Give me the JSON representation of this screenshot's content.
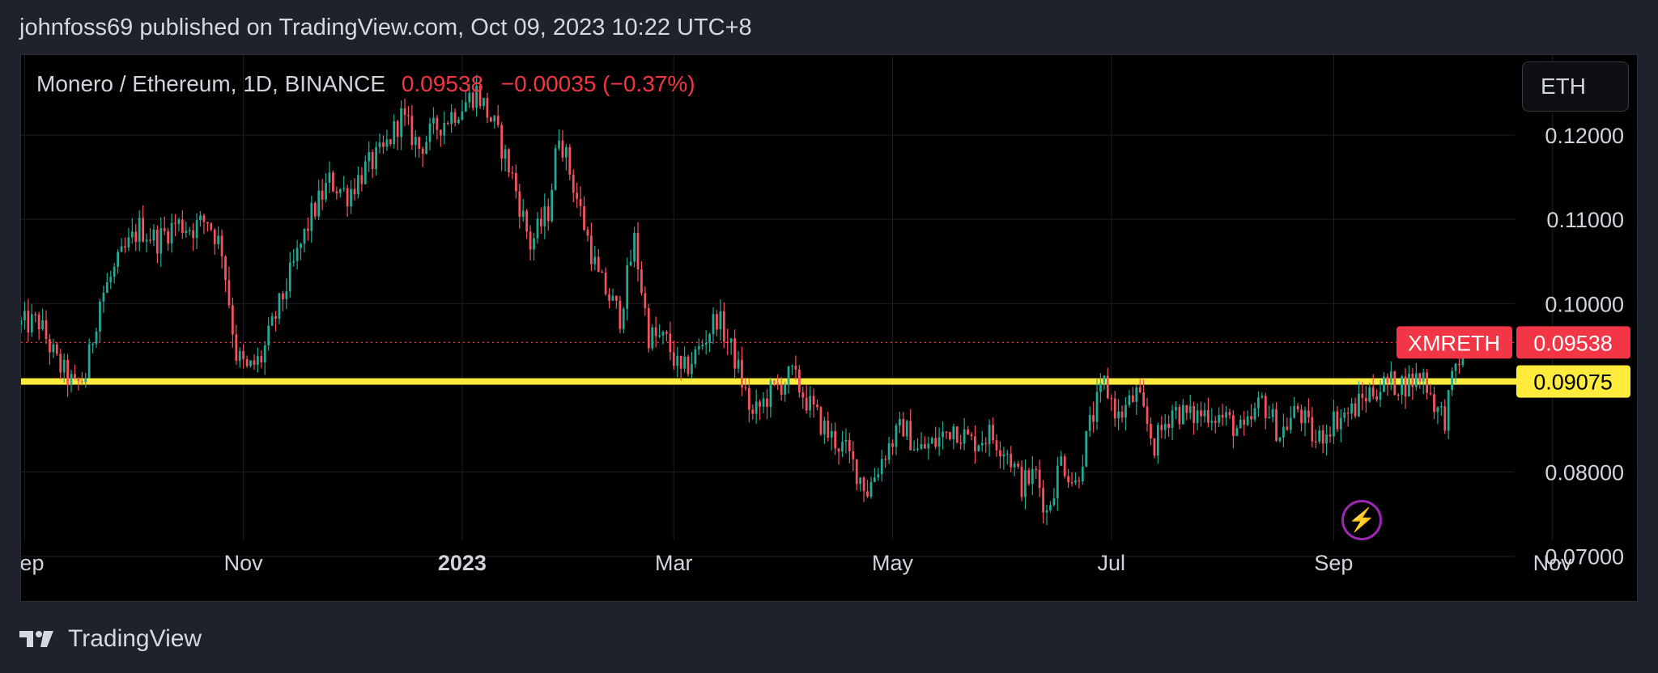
{
  "header": {
    "caption": "johnfoss69 published on TradingView.com, Oct 09, 2023 10:22 UTC+8"
  },
  "legend": {
    "symbol_text": "Monero / Ethereum, 1D, BINANCE",
    "last_price": "0.09538",
    "change": "−0.00035 (−0.37%)"
  },
  "currency_button": "ETH",
  "footer": {
    "brand": "TradingView"
  },
  "colors": {
    "up": "#22ab94",
    "down": "#f7525f",
    "support": "#ffeb3b",
    "symbol_tag_bg": "#f23645",
    "grid": "#1c1f26",
    "text": "#d1d4dc"
  },
  "icons": {
    "quick_action": "lightning-bolt-icon",
    "brand": "tradingview-logo-icon"
  },
  "chart_data": {
    "type": "candlestick",
    "symbol": "XMRETH",
    "interval": "1D",
    "exchange": "BINANCE",
    "last_value": 0.09538,
    "last_value_label": "0.09538",
    "support_level": 0.09075,
    "support_label": "0.09075",
    "y_axis": {
      "range": [
        0.0645,
        0.1295
      ],
      "ticks": [
        0.12,
        0.11,
        0.1,
        0.08,
        0.07
      ],
      "tick_labels": [
        "0.12000",
        "0.11000",
        "0.10000",
        "0.08000",
        "0.07000"
      ]
    },
    "x_axis": {
      "range": [
        "2022-08-31",
        "2023-11-25"
      ],
      "ticks": [
        {
          "date": "2022-09-01",
          "label": "Sep",
          "bold": false
        },
        {
          "date": "2022-11-01",
          "label": "Nov",
          "bold": false
        },
        {
          "date": "2023-01-01",
          "label": "2023",
          "bold": true
        },
        {
          "date": "2023-03-01",
          "label": "Mar",
          "bold": false
        },
        {
          "date": "2023-05-01",
          "label": "May",
          "bold": false
        },
        {
          "date": "2023-07-01",
          "label": "Jul",
          "bold": false
        },
        {
          "date": "2023-09-01",
          "label": "Sep",
          "bold": false
        },
        {
          "date": "2023-11-01",
          "label": "Nov",
          "bold": false
        }
      ]
    },
    "grid": true,
    "close_series": [
      [
        "2022-08-31",
        0.0975
      ],
      [
        "2022-09-05",
        0.0978
      ],
      [
        "2022-09-10",
        0.093
      ],
      [
        "2022-09-15",
        0.09
      ],
      [
        "2022-09-18",
        0.0915
      ],
      [
        "2022-09-22",
        0.1005
      ],
      [
        "2022-09-28",
        0.1055
      ],
      [
        "2022-10-03",
        0.109
      ],
      [
        "2022-10-08",
        0.1075
      ],
      [
        "2022-10-13",
        0.1095
      ],
      [
        "2022-10-18",
        0.109
      ],
      [
        "2022-10-22",
        0.11
      ],
      [
        "2022-10-26",
        0.1065
      ],
      [
        "2022-10-30",
        0.094
      ],
      [
        "2022-11-02",
        0.092
      ],
      [
        "2022-11-06",
        0.0935
      ],
      [
        "2022-11-10",
        0.0985
      ],
      [
        "2022-11-15",
        0.1045
      ],
      [
        "2022-11-20",
        0.1105
      ],
      [
        "2022-11-25",
        0.1145
      ],
      [
        "2022-11-30",
        0.113
      ],
      [
        "2022-12-05",
        0.116
      ],
      [
        "2022-12-10",
        0.118
      ],
      [
        "2022-12-15",
        0.1222
      ],
      [
        "2022-12-20",
        0.1185
      ],
      [
        "2022-12-25",
        0.121
      ],
      [
        "2023-01-01",
        0.1235
      ],
      [
        "2023-01-05",
        0.1252
      ],
      [
        "2023-01-10",
        0.121
      ],
      [
        "2023-01-15",
        0.115
      ],
      [
        "2023-01-20",
        0.107
      ],
      [
        "2023-01-25",
        0.111
      ],
      [
        "2023-01-28",
        0.1205
      ],
      [
        "2023-02-02",
        0.1125
      ],
      [
        "2023-02-08",
        0.103
      ],
      [
        "2023-02-14",
        0.0985
      ],
      [
        "2023-02-18",
        0.1075
      ],
      [
        "2023-02-22",
        0.0962
      ],
      [
        "2023-02-27",
        0.0955
      ],
      [
        "2023-03-03",
        0.0915
      ],
      [
        "2023-03-08",
        0.0945
      ],
      [
        "2023-03-13",
        0.0985
      ],
      [
        "2023-03-18",
        0.0935
      ],
      [
        "2023-03-23",
        0.0865
      ],
      [
        "2023-03-28",
        0.0895
      ],
      [
        "2023-04-03",
        0.0915
      ],
      [
        "2023-04-08",
        0.0878
      ],
      [
        "2023-04-13",
        0.0845
      ],
      [
        "2023-04-18",
        0.0825
      ],
      [
        "2023-04-24",
        0.0778
      ],
      [
        "2023-04-29",
        0.0825
      ],
      [
        "2023-05-04",
        0.0855
      ],
      [
        "2023-05-08",
        0.0825
      ],
      [
        "2023-05-13",
        0.0835
      ],
      [
        "2023-05-18",
        0.0855
      ],
      [
        "2023-05-23",
        0.0835
      ],
      [
        "2023-05-28",
        0.0845
      ],
      [
        "2023-06-02",
        0.0825
      ],
      [
        "2023-06-06",
        0.0785
      ],
      [
        "2023-06-10",
        0.0798
      ],
      [
        "2023-06-13",
        0.0752
      ],
      [
        "2023-06-17",
        0.0815
      ],
      [
        "2023-06-21",
        0.0785
      ],
      [
        "2023-06-25",
        0.0855
      ],
      [
        "2023-06-29",
        0.0905
      ],
      [
        "2023-07-03",
        0.0865
      ],
      [
        "2023-07-08",
        0.0892
      ],
      [
        "2023-07-13",
        0.0832
      ],
      [
        "2023-07-18",
        0.0875
      ],
      [
        "2023-07-23",
        0.0865
      ],
      [
        "2023-07-28",
        0.0872
      ],
      [
        "2023-08-02",
        0.0862
      ],
      [
        "2023-08-07",
        0.0845
      ],
      [
        "2023-08-12",
        0.0885
      ],
      [
        "2023-08-17",
        0.0845
      ],
      [
        "2023-08-22",
        0.0875
      ],
      [
        "2023-08-27",
        0.0835
      ],
      [
        "2023-09-01",
        0.0862
      ],
      [
        "2023-09-06",
        0.0872
      ],
      [
        "2023-09-11",
        0.0895
      ],
      [
        "2023-09-16",
        0.0905
      ],
      [
        "2023-09-21",
        0.0905
      ],
      [
        "2023-09-26",
        0.0915
      ],
      [
        "2023-09-30",
        0.0872
      ],
      [
        "2023-10-02",
        0.0865
      ],
      [
        "2023-10-05",
        0.0925
      ],
      [
        "2023-10-08",
        0.0955
      ]
    ]
  }
}
